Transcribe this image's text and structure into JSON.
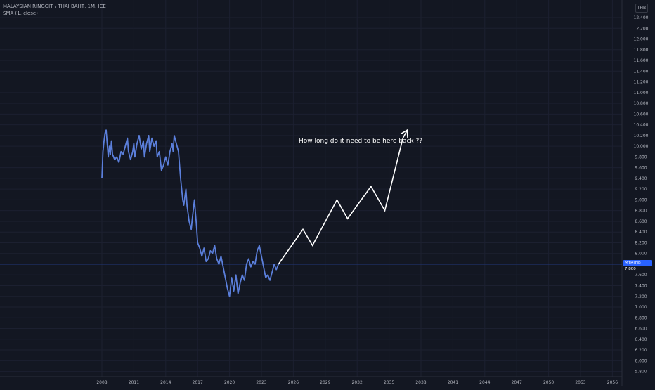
{
  "header": {
    "symbol_line": "MALAYSIAN RINGGIT / THAI BAHT, 1M, ICE",
    "indicator_line": "SMA (1, close)",
    "currency": "THB"
  },
  "price_label": {
    "symbol": "MYRTHB",
    "value": "7.800"
  },
  "annotation": {
    "text": "How long do it need to be here back ??"
  },
  "chart_data": {
    "type": "line",
    "title": "",
    "xlabel": "",
    "ylabel": "",
    "x_ticks": [
      "2008",
      "2011",
      "2014",
      "2017",
      "2020",
      "2023",
      "2026",
      "2029",
      "2032",
      "2035",
      "2038",
      "2041",
      "2044",
      "2047",
      "2050",
      "2053",
      "2056"
    ],
    "y_ticks": [
      "12.400",
      "12.200",
      "12.000",
      "11.800",
      "11.600",
      "11.400",
      "11.200",
      "11.000",
      "10.800",
      "10.600",
      "10.400",
      "10.200",
      "10.000",
      "9.800",
      "9.600",
      "9.400",
      "9.200",
      "9.000",
      "8.800",
      "8.600",
      "8.400",
      "8.200",
      "8.000",
      "7.800",
      "7.600",
      "7.400",
      "7.200",
      "7.000",
      "6.800",
      "6.600",
      "6.400",
      "6.200",
      "6.000",
      "5.800"
    ],
    "xlim": [
      2008,
      2056
    ],
    "ylim": [
      5.8,
      12.4
    ],
    "grid": true,
    "series": [
      {
        "color": "#5b7fdb",
        "points": [
          [
            2008.0,
            9.4
          ],
          [
            2008.1,
            9.9
          ],
          [
            2008.2,
            10.1
          ],
          [
            2008.3,
            10.25
          ],
          [
            2008.4,
            10.3
          ],
          [
            2008.5,
            10.05
          ],
          [
            2008.6,
            9.8
          ],
          [
            2008.7,
            10.0
          ],
          [
            2008.8,
            9.85
          ],
          [
            2008.9,
            10.1
          ],
          [
            2009.0,
            9.85
          ],
          [
            2009.2,
            9.75
          ],
          [
            2009.4,
            9.8
          ],
          [
            2009.6,
            9.7
          ],
          [
            2009.8,
            9.9
          ],
          [
            2010.0,
            9.85
          ],
          [
            2010.2,
            10.0
          ],
          [
            2010.4,
            10.15
          ],
          [
            2010.5,
            9.9
          ],
          [
            2010.7,
            9.75
          ],
          [
            2010.9,
            9.9
          ],
          [
            2011.0,
            10.05
          ],
          [
            2011.1,
            9.8
          ],
          [
            2011.3,
            10.05
          ],
          [
            2011.5,
            10.2
          ],
          [
            2011.7,
            9.95
          ],
          [
            2011.9,
            10.1
          ],
          [
            2012.0,
            9.8
          ],
          [
            2012.2,
            10.05
          ],
          [
            2012.4,
            10.2
          ],
          [
            2012.5,
            9.9
          ],
          [
            2012.7,
            10.15
          ],
          [
            2012.9,
            10.0
          ],
          [
            2013.1,
            10.1
          ],
          [
            2013.2,
            9.8
          ],
          [
            2013.4,
            9.9
          ],
          [
            2013.6,
            9.55
          ],
          [
            2013.8,
            9.65
          ],
          [
            2014.0,
            9.8
          ],
          [
            2014.2,
            9.65
          ],
          [
            2014.4,
            9.9
          ],
          [
            2014.6,
            10.05
          ],
          [
            2014.7,
            9.9
          ],
          [
            2014.8,
            10.2
          ],
          [
            2015.0,
            10.05
          ],
          [
            2015.2,
            9.9
          ],
          [
            2015.4,
            9.4
          ],
          [
            2015.6,
            9.0
          ],
          [
            2015.7,
            8.9
          ],
          [
            2015.9,
            9.2
          ],
          [
            2016.0,
            8.9
          ],
          [
            2016.2,
            8.6
          ],
          [
            2016.4,
            8.45
          ],
          [
            2016.5,
            8.65
          ],
          [
            2016.7,
            9.0
          ],
          [
            2016.9,
            8.5
          ],
          [
            2017.0,
            8.2
          ],
          [
            2017.2,
            8.1
          ],
          [
            2017.4,
            7.95
          ],
          [
            2017.6,
            8.1
          ],
          [
            2017.8,
            7.85
          ],
          [
            2018.0,
            7.9
          ],
          [
            2018.2,
            8.05
          ],
          [
            2018.4,
            8.0
          ],
          [
            2018.6,
            8.15
          ],
          [
            2018.8,
            7.9
          ],
          [
            2019.0,
            7.8
          ],
          [
            2019.2,
            7.95
          ],
          [
            2019.4,
            7.75
          ],
          [
            2019.6,
            7.55
          ],
          [
            2019.8,
            7.35
          ],
          [
            2020.0,
            7.2
          ],
          [
            2020.2,
            7.55
          ],
          [
            2020.4,
            7.3
          ],
          [
            2020.6,
            7.6
          ],
          [
            2020.8,
            7.25
          ],
          [
            2021.0,
            7.45
          ],
          [
            2021.2,
            7.6
          ],
          [
            2021.4,
            7.5
          ],
          [
            2021.6,
            7.8
          ],
          [
            2021.8,
            7.9
          ],
          [
            2022.0,
            7.75
          ],
          [
            2022.2,
            7.85
          ],
          [
            2022.4,
            7.8
          ],
          [
            2022.6,
            8.05
          ],
          [
            2022.8,
            8.15
          ],
          [
            2023.0,
            7.95
          ],
          [
            2023.2,
            7.75
          ],
          [
            2023.4,
            7.55
          ],
          [
            2023.6,
            7.6
          ],
          [
            2023.8,
            7.5
          ],
          [
            2024.0,
            7.65
          ],
          [
            2024.2,
            7.8
          ],
          [
            2024.4,
            7.7
          ],
          [
            2024.6,
            7.8
          ]
        ]
      }
    ],
    "projection": {
      "color": "#ffffff",
      "points": [
        [
          2024.6,
          7.8
        ],
        [
          2026.9,
          8.45
        ],
        [
          2027.8,
          8.15
        ],
        [
          2030.1,
          9.0
        ],
        [
          2031.1,
          8.65
        ],
        [
          2033.3,
          9.25
        ],
        [
          2034.6,
          8.8
        ],
        [
          2036.3,
          10.15
        ],
        [
          2036.7,
          10.3
        ]
      ]
    }
  }
}
